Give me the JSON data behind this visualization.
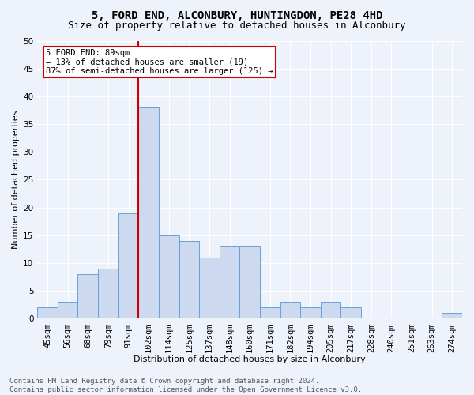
{
  "title1": "5, FORD END, ALCONBURY, HUNTINGDON, PE28 4HD",
  "title2": "Size of property relative to detached houses in Alconbury",
  "xlabel": "Distribution of detached houses by size in Alconbury",
  "ylabel": "Number of detached properties",
  "categories": [
    "45sqm",
    "56sqm",
    "68sqm",
    "79sqm",
    "91sqm",
    "102sqm",
    "114sqm",
    "125sqm",
    "137sqm",
    "148sqm",
    "160sqm",
    "171sqm",
    "182sqm",
    "194sqm",
    "205sqm",
    "217sqm",
    "228sqm",
    "240sqm",
    "251sqm",
    "263sqm",
    "274sqm"
  ],
  "values": [
    2,
    3,
    8,
    9,
    19,
    38,
    15,
    14,
    11,
    13,
    13,
    2,
    3,
    2,
    3,
    2,
    0,
    0,
    0,
    0,
    1
  ],
  "bar_color": "#ccd9ee",
  "bar_edge_color": "#6a9fd8",
  "annotation_text": "5 FORD END: 89sqm\n← 13% of detached houses are smaller (19)\n87% of semi-detached houses are larger (125) →",
  "annotation_box_color": "#ffffff",
  "annotation_box_edge": "#cc0000",
  "vline_color": "#cc0000",
  "vline_x": 4.5,
  "ylim": [
    0,
    50
  ],
  "yticks": [
    0,
    5,
    10,
    15,
    20,
    25,
    30,
    35,
    40,
    45,
    50
  ],
  "bg_color": "#eef2fa",
  "grid_color": "#ffffff",
  "footer": "Contains HM Land Registry data © Crown copyright and database right 2024.\nContains public sector information licensed under the Open Government Licence v3.0.",
  "title_fontsize": 10,
  "subtitle_fontsize": 9,
  "axis_label_fontsize": 8,
  "tick_fontsize": 7.5,
  "annotation_fontsize": 7.5,
  "footer_fontsize": 6.5
}
